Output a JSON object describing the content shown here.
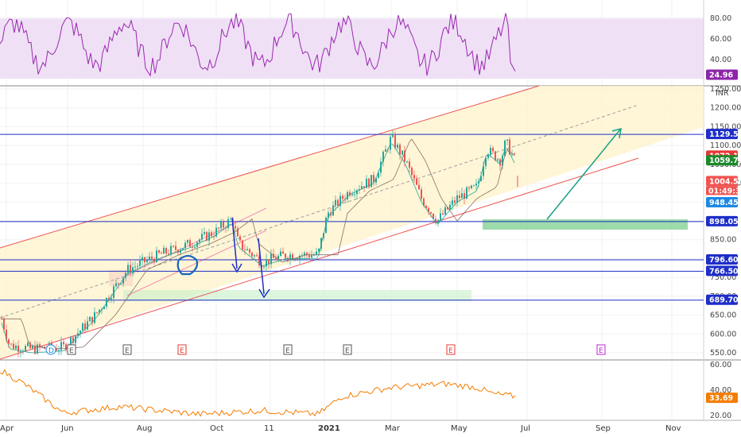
{
  "chart_data": [
    {
      "type": "line",
      "panel": "rsi",
      "yticks": [
        "80.00",
        "60.00",
        "40.00"
      ],
      "last_value": "24.96",
      "colors": {
        "line": "#9c27b0",
        "band": "#efe0f6"
      }
    },
    {
      "type": "candlestick",
      "panel": "price",
      "currency": "INR",
      "yticks": [
        "1250.00",
        "1200.00",
        "1150.00",
        "1100.00",
        "1050.00",
        "1000.00",
        "950.00",
        "900.00",
        "850.00",
        "800.00",
        "750.00",
        "700.00",
        "650.00",
        "600.00",
        "550.00"
      ],
      "last_price": "1004.50",
      "countdown": "01:49:32",
      "horizontal_levels": [
        "1129.55",
        "898.05",
        "796.60",
        "766.50",
        "689.70"
      ],
      "price_badges": [
        {
          "value": "1129.55",
          "color": "#1e2ec8"
        },
        {
          "value": "1072.15",
          "color": "#e53935"
        },
        {
          "value": "1059.75",
          "color": "#1b8a2a"
        },
        {
          "value": "1004.50",
          "color": "#ef5350"
        },
        {
          "value": "948.45",
          "color": "#1e88e5"
        },
        {
          "value": "898.05",
          "color": "#1e2ec8"
        },
        {
          "value": "796.60",
          "color": "#1e2ec8"
        },
        {
          "value": "766.50",
          "color": "#1e2ec8"
        },
        {
          "value": "689.70",
          "color": "#1e2ec8"
        }
      ],
      "event_markers": [
        "D",
        "E",
        "E",
        "E",
        "E",
        "E",
        "E",
        "E"
      ],
      "colors": {
        "up": "#26a69a",
        "down": "#ef5350",
        "channel": "#ef5350",
        "level": "#1e2ec8"
      }
    },
    {
      "type": "line",
      "panel": "indicator",
      "yticks": [
        "60.00",
        "40.00",
        "20.00"
      ],
      "last_value": "33.69",
      "colors": {
        "line": "#f57c00"
      }
    }
  ],
  "xaxis": {
    "ticks": [
      "Apr",
      "Jun",
      "Aug",
      "Oct",
      "11",
      "2021",
      "Mar",
      "May",
      "Jul",
      "Sep",
      "Nov"
    ]
  }
}
